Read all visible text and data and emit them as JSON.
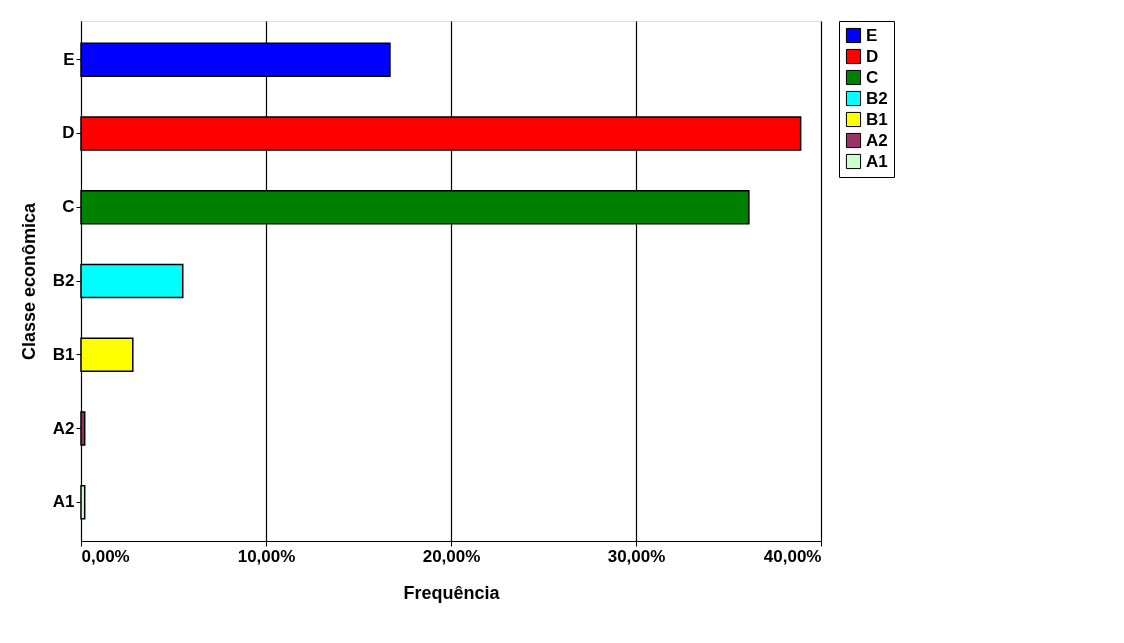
{
  "chart_data": {
    "type": "bar",
    "orientation": "horizontal",
    "xlabel": "Frequência",
    "ylabel": "Classe econômica",
    "categories": [
      "E",
      "D",
      "C",
      "B2",
      "B1",
      "A2",
      "A1"
    ],
    "series": [
      {
        "name": "E",
        "color": "#0000ff",
        "values": [
          16.7,
          null,
          null,
          null,
          null,
          null,
          null
        ]
      },
      {
        "name": "D",
        "color": "#ff0000",
        "values": [
          null,
          38.9,
          null,
          null,
          null,
          null,
          null
        ]
      },
      {
        "name": "C",
        "color": "#008000",
        "values": [
          null,
          null,
          36.1,
          null,
          null,
          null,
          null
        ]
      },
      {
        "name": "B2",
        "color": "#00ffff",
        "values": [
          null,
          null,
          null,
          5.5,
          null,
          null,
          null
        ]
      },
      {
        "name": "B1",
        "color": "#ffff00",
        "values": [
          null,
          null,
          null,
          null,
          2.8,
          null,
          null
        ]
      },
      {
        "name": "A2",
        "color": "#993366",
        "values": [
          null,
          null,
          null,
          null,
          null,
          0.2,
          null
        ]
      },
      {
        "name": "A1",
        "color": "#ccffcc",
        "values": [
          null,
          null,
          null,
          null,
          null,
          null,
          0.2
        ]
      }
    ],
    "xlim": [
      0,
      40
    ],
    "xticks": [
      {
        "value": 0,
        "label": "0,00%"
      },
      {
        "value": 10,
        "label": "10,00%"
      },
      {
        "value": 20,
        "label": "20,00%"
      },
      {
        "value": 30,
        "label": "30,00%"
      },
      {
        "value": 40,
        "label": "40,00%"
      }
    ],
    "grid": "x",
    "legend": "right"
  }
}
